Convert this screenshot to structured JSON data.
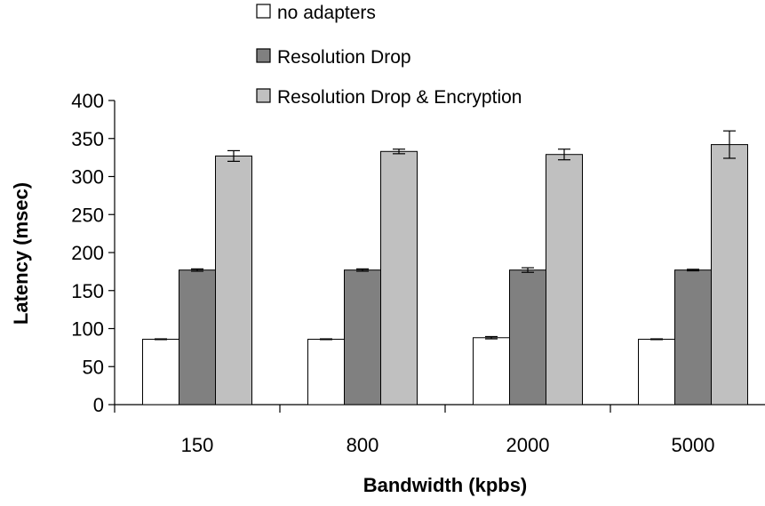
{
  "chart_data": {
    "type": "bar",
    "xlabel": "Bandwidth (kpbs)",
    "ylabel": "Latency (msec)",
    "ylim": [
      0,
      400
    ],
    "yticks": [
      0,
      50,
      100,
      150,
      200,
      250,
      300,
      350,
      400
    ],
    "categories": [
      "150",
      "800",
      "2000",
      "5000"
    ],
    "series": [
      {
        "name": "no adapters",
        "color": "#ffffff",
        "values": [
          86,
          86,
          88,
          86
        ],
        "errors": [
          0.5,
          0.5,
          1.5,
          0.5
        ]
      },
      {
        "name": "Resolution Drop",
        "color": "#808080",
        "values": [
          177,
          177,
          177,
          177
        ],
        "errors": [
          1.5,
          1.5,
          3,
          1
        ]
      },
      {
        "name": "Resolution Drop & Encryption",
        "color": "#c0c0c0",
        "values": [
          327,
          333,
          329,
          342
        ],
        "errors": [
          7,
          3,
          7,
          18
        ]
      }
    ],
    "legend_position": "top",
    "grid": false
  }
}
